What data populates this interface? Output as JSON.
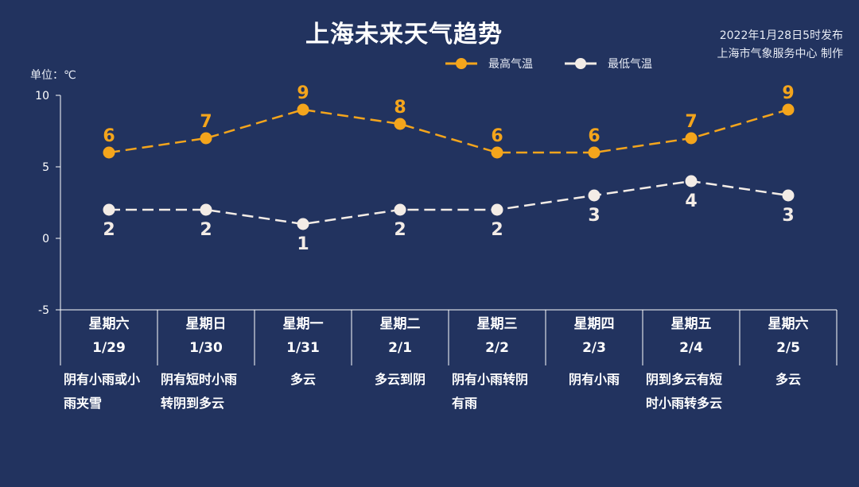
{
  "header": {
    "title": "上海未来天气趋势",
    "publish_time": "2022年1月28日5时发布",
    "publisher": "上海市气象服务中心 制作",
    "unit_label": "单位：℃"
  },
  "legend": [
    {
      "name": "最高气温",
      "color": "#f4a51c"
    },
    {
      "name": "最低气温",
      "color": "#f3ece6"
    }
  ],
  "chart_data": {
    "type": "line",
    "title": "上海未来天气趋势",
    "ylabel": "单位：℃",
    "ylim": [
      -5,
      10
    ],
    "yticks": [
      -5,
      0,
      5,
      10
    ],
    "categories": [
      "星期六 1/29",
      "星期日 1/30",
      "星期一 1/31",
      "星期二 2/1",
      "星期三 2/2",
      "星期四 2/3",
      "星期五 2/4",
      "星期六 2/5"
    ],
    "series": [
      {
        "name": "最高气温",
        "color": "#f4a51c",
        "values": [
          6,
          7,
          9,
          8,
          6,
          6,
          7,
          9
        ],
        "labels_position": "above",
        "line_style": "dashed"
      },
      {
        "name": "最低气温",
        "color": "#f3ece6",
        "values": [
          2,
          2,
          1,
          2,
          2,
          3,
          4,
          3
        ],
        "labels_position": "below",
        "line_style": "dashed"
      }
    ],
    "grid": false,
    "legend_position": "top-center"
  },
  "days": [
    {
      "weekday": "星期六",
      "date": "1/29",
      "desc_lines": [
        "阴有小雨或小",
        "雨夹雪"
      ]
    },
    {
      "weekday": "星期日",
      "date": "1/30",
      "desc_lines": [
        "阴有短时小雨",
        "转阴到多云"
      ]
    },
    {
      "weekday": "星期一",
      "date": "1/31",
      "desc_lines": [
        "多云"
      ]
    },
    {
      "weekday": "星期二",
      "date": "2/1",
      "desc_lines": [
        "多云到阴"
      ]
    },
    {
      "weekday": "星期三",
      "date": "2/2",
      "desc_lines": [
        "阴有小雨转阴",
        "有雨"
      ]
    },
    {
      "weekday": "星期四",
      "date": "2/3",
      "desc_lines": [
        "阴有小雨"
      ]
    },
    {
      "weekday": "星期五",
      "date": "2/4",
      "desc_lines": [
        "阴到多云有短",
        "时小雨转多云"
      ]
    },
    {
      "weekday": "星期六",
      "date": "2/5",
      "desc_lines": [
        "多云"
      ]
    }
  ]
}
